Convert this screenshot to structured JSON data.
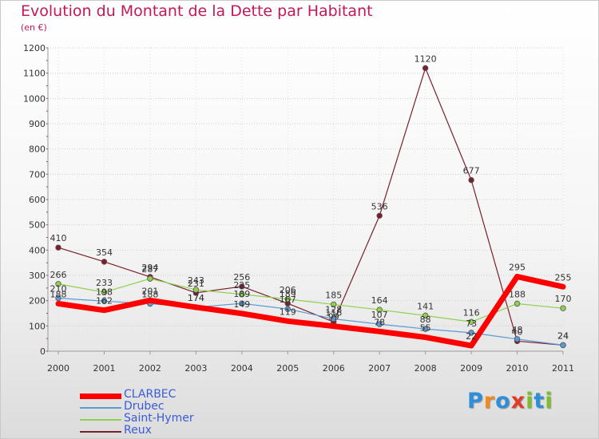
{
  "title": "Evolution du Montant de la Dette par Habitant",
  "subtitle": "(en €)",
  "logo": {
    "letters": [
      "P",
      "r",
      "o",
      "x",
      "i",
      "t",
      "i"
    ],
    "colors": [
      "#2e8fd8",
      "#f08a1c",
      "#2e8fd8",
      "#e23b2a",
      "#7cbf2b",
      "#2e8fd8",
      "#7cbf2b"
    ]
  },
  "chart_data": {
    "type": "line",
    "x": [
      "2000",
      "2001",
      "2002",
      "2003",
      "2004",
      "2005",
      "2006",
      "2007",
      "2008",
      "2009",
      "2010",
      "2011"
    ],
    "ylim": [
      0,
      1200
    ],
    "yticks": [
      "0",
      "100",
      "200",
      "300",
      "400",
      "500",
      "600",
      "700",
      "800",
      "900",
      "1000",
      "1100",
      "1200"
    ],
    "grid": true,
    "legend_position": "bottom-left",
    "series": [
      {
        "name": "Reux",
        "color": "#7a1f2b",
        "width": 1.2,
        "values": [
          410,
          354,
          294,
          231,
          256,
          189,
          116,
          536,
          1120,
          677,
          40,
          24
        ],
        "labels": [
          "410",
          "354",
          "294",
          "231",
          "256",
          "189",
          "116",
          "536",
          "1120",
          "677",
          "40",
          "24"
        ]
      },
      {
        "name": "Saint-Hymer",
        "color": "#8fd14f",
        "width": 1.2,
        "values": [
          266,
          233,
          287,
          243,
          225,
          206,
          185,
          164,
          141,
          116,
          188,
          170
        ],
        "labels": [
          "266",
          "233",
          "287",
          "243",
          "225",
          "206",
          "185",
          "164",
          "141",
          "116",
          "188",
          "170"
        ]
      },
      {
        "name": "Drubec",
        "color": "#5b9bd5",
        "width": 1.2,
        "values": [
          210,
          198,
          188,
          174,
          189,
          167,
          128,
          107,
          88,
          73,
          48,
          24
        ],
        "labels": [
          "210",
          "198",
          "188",
          "174",
          "189",
          "167",
          "128",
          "107",
          "88",
          "73",
          "48",
          "24"
        ]
      },
      {
        "name": "CLARBEC",
        "color": "#ff0000",
        "width": 7,
        "values": [
          188,
          162,
          201,
          174,
          149,
          119,
          99,
          78,
          55,
          22,
          295,
          255
        ],
        "labels": [
          "188",
          "162",
          "201",
          "174",
          "149",
          "119",
          "99",
          "78",
          "55",
          "22",
          "295",
          "255"
        ]
      }
    ]
  },
  "legend": [
    {
      "name": "CLARBEC",
      "color": "#ff0000",
      "thickness": 7
    },
    {
      "name": "Drubec",
      "color": "#5b9bd5",
      "thickness": 2
    },
    {
      "name": "Saint-Hymer",
      "color": "#8fd14f",
      "thickness": 2
    },
    {
      "name": "Reux",
      "color": "#7a1f2b",
      "thickness": 2
    }
  ]
}
